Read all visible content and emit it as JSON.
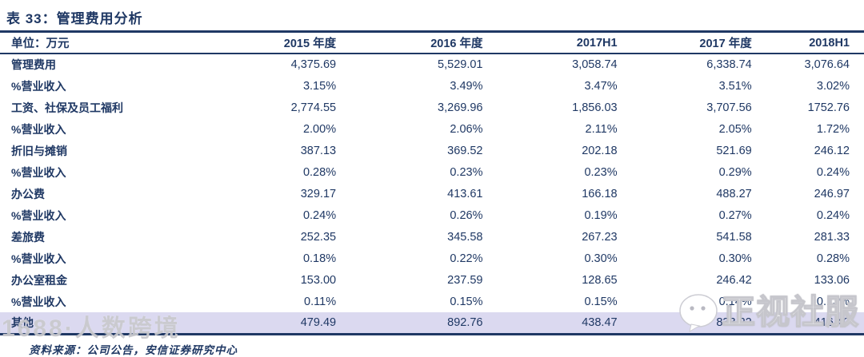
{
  "title": "表 33：管理费用分析",
  "table": {
    "unit_label": "单位：万元",
    "columns": [
      "2015 年度",
      "2016 年度",
      "2017H1",
      "2017 年度",
      "2018H1"
    ],
    "rows": [
      {
        "label": "管理费用",
        "values": [
          "4,375.69",
          "5,529.01",
          "3,058.74",
          "6,338.74",
          "3,076.64"
        ],
        "highlight": false
      },
      {
        "label": "%营业收入",
        "values": [
          "3.15%",
          "3.49%",
          "3.47%",
          "3.51%",
          "3.02%"
        ],
        "highlight": false
      },
      {
        "label": "工资、社保及员工福利",
        "values": [
          "2,774.55",
          "3,269.96",
          "1,856.03",
          "3,707.56",
          "1752.76"
        ],
        "highlight": false
      },
      {
        "label": "%营业收入",
        "values": [
          "2.00%",
          "2.06%",
          "2.11%",
          "2.05%",
          "1.72%"
        ],
        "highlight": false
      },
      {
        "label": "折旧与摊销",
        "values": [
          "387.13",
          "369.52",
          "202.18",
          "521.69",
          "246.12"
        ],
        "highlight": false
      },
      {
        "label": "%营业收入",
        "values": [
          "0.28%",
          "0.23%",
          "0.23%",
          "0.29%",
          "0.24%"
        ],
        "highlight": false
      },
      {
        "label": "办公费",
        "values": [
          "329.17",
          "413.61",
          "166.18",
          "488.27",
          "246.97"
        ],
        "highlight": false
      },
      {
        "label": "%营业收入",
        "values": [
          "0.24%",
          "0.26%",
          "0.19%",
          "0.27%",
          "0.24%"
        ],
        "highlight": false
      },
      {
        "label": "差旅费",
        "values": [
          "252.35",
          "345.58",
          "267.23",
          "541.58",
          "281.33"
        ],
        "highlight": false
      },
      {
        "label": "%营业收入",
        "values": [
          "0.18%",
          "0.22%",
          "0.30%",
          "0.30%",
          "0.28%"
        ],
        "highlight": false
      },
      {
        "label": "办公室租金",
        "values": [
          "153.00",
          "237.59",
          "128.65",
          "246.42",
          "133.06"
        ],
        "highlight": false
      },
      {
        "label": "%营业收入",
        "values": [
          "0.11%",
          "0.15%",
          "0.15%",
          "0.14%",
          "0.13%"
        ],
        "highlight": false
      },
      {
        "label": "其他",
        "values": [
          "479.49",
          "892.76",
          "438.47",
          "833.22",
          "416.40"
        ],
        "highlight": true
      }
    ]
  },
  "footer": {
    "source_text": "资料来源：公司公告，安信证券研究中心"
  },
  "watermarks": {
    "left_text": "1688·人数跨境",
    "right_text": "正视社服",
    "right_icon": "wechat-logo"
  },
  "colors": {
    "navy": "#1f3864",
    "highlight_row_bg": "#dbd9f0"
  }
}
